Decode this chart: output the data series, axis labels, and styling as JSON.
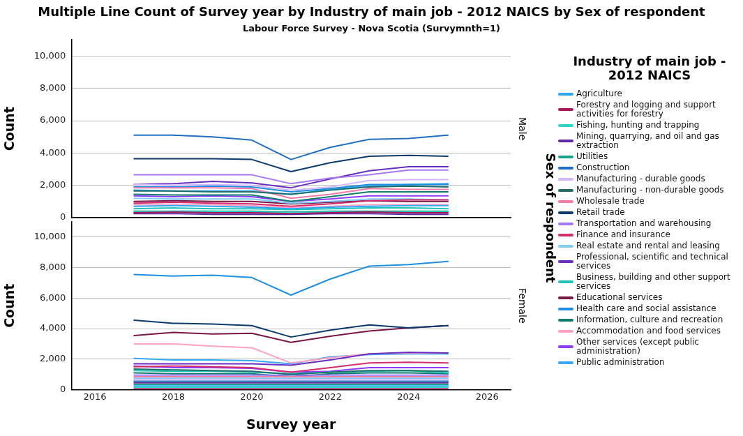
{
  "chart_data": [
    {
      "type": "line",
      "title": "Multiple Line Count of Survey year by Industry of main job - 2012 NAICS by Sex of respondent",
      "subtitle": "Labour Force Survey - Nova Scotia (Survymnth=1)",
      "ylabel": "Count",
      "legend_title": "Industry of main job - 2012 NAICS",
      "legend": "right",
      "grid": "y",
      "tick_labels": "y",
      "xlim": [
        2015.4,
        2026.6
      ],
      "xticks": [
        2016,
        2018,
        2020,
        2022,
        2024,
        2026
      ],
      "ylim": [
        0,
        11000
      ],
      "yticks": [
        0,
        {
          "value": 2000,
          "label": "2,000"
        },
        {
          "value": 4000,
          "label": "4,000"
        },
        {
          "value": 6000,
          "label": "6,000"
        },
        {
          "value": 8000,
          "label": "8,000"
        },
        {
          "value": 10000,
          "label": "10,000"
        }
      ],
      "annotations": [
        "Male",
        "Sex of respondent"
      ],
      "x": [
        2017,
        2018,
        2019,
        2020,
        2021,
        2022,
        2023,
        2024,
        2025
      ],
      "series": [
        {
          "name": "Agriculture",
          "color": "#2aa8f2",
          "values": [
            700,
            750,
            700,
            650,
            550,
            650,
            700,
            750,
            750
          ]
        },
        {
          "name": "Forestry and logging and support activities for forestry",
          "color": "#a3195b",
          "values": [
            300,
            350,
            300,
            300,
            250,
            300,
            350,
            300,
            300
          ]
        },
        {
          "name": "Fishing, hunting and trapping",
          "color": "#2dd4c8",
          "values": [
            350,
            400,
            400,
            350,
            300,
            350,
            350,
            350,
            350
          ]
        },
        {
          "name": "Mining, quarrying, and oil and gas extraction",
          "color": "#5d2aa0",
          "values": [
            250,
            250,
            200,
            200,
            200,
            250,
            250,
            200,
            200
          ]
        },
        {
          "name": "Utilities",
          "color": "#1aa38c",
          "values": [
            400,
            400,
            400,
            400,
            350,
            400,
            400,
            400,
            400
          ]
        },
        {
          "name": "Construction",
          "color": "#1f70c1",
          "values": [
            5100,
            5100,
            5000,
            4800,
            3600,
            4350,
            4850,
            4900,
            5100
          ]
        },
        {
          "name": "Manufacturing - durable goods",
          "color": "#d4b8ff",
          "values": [
            2050,
            2000,
            2050,
            2000,
            1700,
            1900,
            2300,
            2350,
            2350
          ]
        },
        {
          "name": "Manufacturing - non-durable goods",
          "color": "#1e6f6a",
          "values": [
            1650,
            1650,
            1600,
            1600,
            1450,
            1700,
            1900,
            1950,
            1900
          ]
        },
        {
          "name": "Wholesale trade",
          "color": "#f07ca8",
          "values": [
            1850,
            1850,
            1850,
            1800,
            1200,
            1450,
            1800,
            1750,
            1750
          ]
        },
        {
          "name": "Retail trade",
          "color": "#0b3a6e",
          "values": [
            3650,
            3650,
            3650,
            3600,
            2850,
            3400,
            3800,
            3850,
            3800
          ]
        },
        {
          "name": "Transportation and warehousing",
          "color": "#a878f7",
          "values": [
            2650,
            2650,
            2650,
            2650,
            2100,
            2450,
            2650,
            2950,
            2950
          ]
        },
        {
          "name": "Finance and insurance",
          "color": "#d42c6a",
          "values": [
            900,
            950,
            900,
            850,
            700,
            850,
            1050,
            1100,
            1100
          ]
        },
        {
          "name": "Real estate and rental and leasing",
          "color": "#7fcbf5",
          "values": [
            1200,
            1150,
            1150,
            1150,
            900,
            1000,
            1150,
            1150,
            1100
          ]
        },
        {
          "name": "Professional, scientific and technical services",
          "color": "#6a2fc2",
          "values": [
            2050,
            2100,
            2250,
            2150,
            1850,
            2400,
            2900,
            3150,
            3150
          ]
        },
        {
          "name": "Business, building and other support services",
          "color": "#1fc4b8",
          "values": [
            550,
            600,
            550,
            550,
            500,
            550,
            600,
            600,
            550
          ]
        },
        {
          "name": "Educational services",
          "color": "#7a1646",
          "values": [
            1000,
            1050,
            1000,
            1000,
            850,
            950,
            1050,
            1000,
            1000
          ]
        },
        {
          "name": "Health care and social assistance",
          "color": "#1e8fe0",
          "values": [
            1900,
            1900,
            1950,
            1900,
            1600,
            1800,
            2050,
            2050,
            2050
          ]
        },
        {
          "name": "Information, culture and recreation",
          "color": "#137a6e",
          "values": [
            1450,
            1400,
            1400,
            1400,
            1000,
            1300,
            1600,
            1600,
            1600
          ]
        },
        {
          "name": "Accommodation and food services",
          "color": "#ffa3c5",
          "values": [
            800,
            800,
            800,
            750,
            600,
            700,
            800,
            800,
            800
          ]
        },
        {
          "name": "Other services (except public administration)",
          "color": "#8e3dff",
          "values": [
            1350,
            1300,
            1350,
            1300,
            1000,
            1150,
            1350,
            1350,
            1350
          ]
        },
        {
          "name": "Public administration",
          "color": "#35a8f5",
          "values": [
            1700,
            1650,
            1650,
            1650,
            1450,
            1750,
            1950,
            2050,
            2100
          ]
        }
      ]
    },
    {
      "type": "line",
      "xlabel": "Survey year",
      "ylabel": "Count",
      "grid": "y",
      "xlim": [
        2015.4,
        2026.6
      ],
      "xticks": [
        2016,
        2018,
        2020,
        2022,
        2024,
        2026
      ],
      "ylim": [
        0,
        11000
      ],
      "yticks": [
        0,
        {
          "value": 2000,
          "label": "2,000"
        },
        {
          "value": 4000,
          "label": "4,000"
        },
        {
          "value": 6000,
          "label": "6,000"
        },
        {
          "value": 8000,
          "label": "8,000"
        },
        {
          "value": 10000,
          "label": "10,000"
        }
      ],
      "annotations": [
        "Female"
      ],
      "x": [
        2017,
        2018,
        2019,
        2020,
        2021,
        2022,
        2023,
        2024,
        2025
      ],
      "series": [
        {
          "color": "#2aa8f2",
          "values": [
            250,
            250,
            250,
            250,
            250,
            250,
            250,
            250,
            250
          ]
        },
        {
          "color": "#a3195b",
          "values": [
            50,
            50,
            50,
            50,
            50,
            50,
            50,
            50,
            50
          ]
        },
        {
          "color": "#2dd4c8",
          "values": [
            150,
            150,
            150,
            150,
            150,
            150,
            150,
            150,
            150
          ]
        },
        {
          "color": "#5d2aa0",
          "values": [
            450,
            450,
            450,
            450,
            450,
            450,
            450,
            450,
            450
          ]
        },
        {
          "color": "#1aa38c",
          "values": [
            350,
            350,
            350,
            350,
            350,
            350,
            350,
            350,
            350
          ]
        },
        {
          "color": "#1f70c1",
          "values": [
            550,
            550,
            550,
            550,
            550,
            550,
            550,
            550,
            550
          ]
        },
        {
          "color": "#d4b8ff",
          "values": [
            650,
            650,
            650,
            650,
            650,
            650,
            650,
            650,
            650
          ]
        },
        {
          "color": "#1e6f6a",
          "values": [
            1350,
            1300,
            1250,
            1200,
            1000,
            1150,
            1250,
            1250,
            1200
          ]
        },
        {
          "color": "#f07ca8",
          "values": [
            850,
            850,
            850,
            850,
            850,
            850,
            850,
            850,
            850
          ]
        },
        {
          "color": "#0b3a6e",
          "values": [
            4550,
            4350,
            4300,
            4200,
            3450,
            3900,
            4250,
            4050,
            4200
          ]
        },
        {
          "color": "#a878f7",
          "values": [
            950,
            950,
            950,
            950,
            950,
            950,
            950,
            950,
            950
          ]
        },
        {
          "color": "#d42c6a",
          "values": [
            1500,
            1550,
            1500,
            1450,
            1150,
            1450,
            1750,
            1800,
            1750
          ]
        },
        {
          "color": "#7fcbf5",
          "values": [
            750,
            750,
            750,
            750,
            750,
            750,
            750,
            750,
            750
          ]
        },
        {
          "color": "#6a2fc2",
          "values": [
            1700,
            1700,
            1700,
            1700,
            1600,
            1950,
            2350,
            2450,
            2400
          ]
        },
        {
          "color": "#1fc4b8",
          "values": [
            1250,
            1200,
            1200,
            1150,
            1050,
            1150,
            1200,
            1250,
            1100
          ]
        },
        {
          "color": "#7a1646",
          "values": [
            3550,
            3750,
            3650,
            3700,
            3100,
            3500,
            3850,
            4050,
            4200
          ]
        },
        {
          "color": "#1e8fe0",
          "values": [
            7550,
            7450,
            7500,
            7350,
            6200,
            7250,
            8100,
            8200,
            8400
          ]
        },
        {
          "color": "#137a6e",
          "values": [
            1100,
            1050,
            1050,
            1050,
            850,
            1050,
            1100,
            1100,
            1050
          ]
        },
        {
          "color": "#ffa3c5",
          "values": [
            3000,
            3000,
            2850,
            2750,
            1750,
            2100,
            2350,
            2400,
            2400
          ]
        },
        {
          "color": "#8e3dff",
          "values": [
            1550,
            1450,
            1450,
            1400,
            1150,
            1200,
            1450,
            1450,
            1450
          ]
        },
        {
          "color": "#35a8f5",
          "values": [
            2050,
            1950,
            1950,
            1900,
            1700,
            2150,
            2300,
            2350,
            2350
          ]
        }
      ]
    }
  ]
}
